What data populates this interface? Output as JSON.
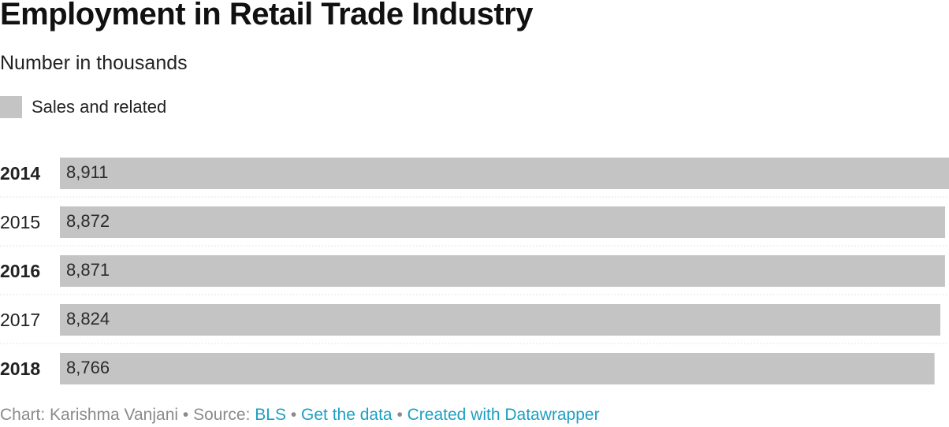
{
  "header": {
    "title": "Employment in Retail Trade Industry",
    "subtitle": "Number in thousands"
  },
  "legend": {
    "label": "Sales and related",
    "color": "#c4c4c4"
  },
  "chart_data": {
    "type": "bar",
    "orientation": "horizontal",
    "title": "Employment in Retail Trade Industry",
    "subtitle": "Number in thousands",
    "categories": [
      "2014",
      "2015",
      "2016",
      "2017",
      "2018"
    ],
    "bold_categories": [
      "2014",
      "2016",
      "2018"
    ],
    "series": [
      {
        "name": "Sales and related",
        "color": "#c4c4c4",
        "values": [
          8911,
          8872,
          8871,
          8824,
          8766
        ],
        "labels": [
          "8,911",
          "8,872",
          "8,871",
          "8,824",
          "8,766"
        ]
      }
    ],
    "xlim": [
      0,
      8911
    ],
    "grid": false,
    "legend_position": "top-left"
  },
  "footer": {
    "prefix": "Chart: Karishma Vanjani • Source: ",
    "source_link": "BLS",
    "sep1": " • ",
    "data_link": "Get the data",
    "sep2": " • ",
    "credit_link": "Created with Datawrapper"
  }
}
